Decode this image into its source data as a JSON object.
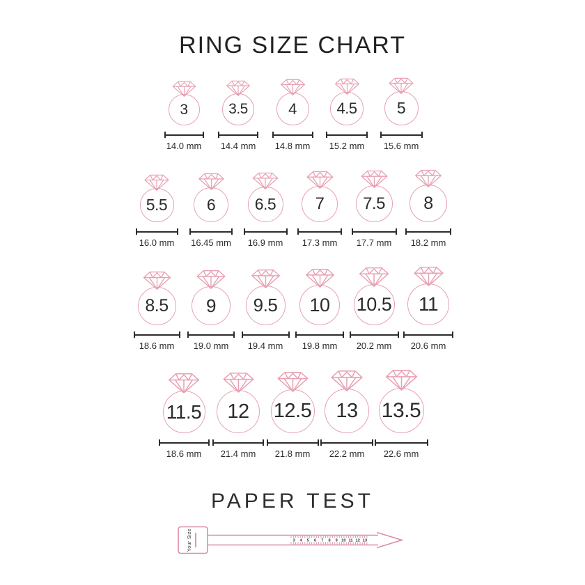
{
  "title": "RING SIZE CHART",
  "colors": {
    "pink": "#e8a1b3",
    "sizer_pink": "#de8ba3",
    "ink": "#2b2b2b"
  },
  "rows": [
    {
      "rings": [
        {
          "size": "3",
          "mm": "14.0 mm"
        },
        {
          "size": "3.5",
          "mm": "14.4 mm"
        },
        {
          "size": "4",
          "mm": "14.8 mm"
        },
        {
          "size": "4.5",
          "mm": "15.2 mm"
        },
        {
          "size": "5",
          "mm": "15.6 mm"
        }
      ]
    },
    {
      "rings": [
        {
          "size": "5.5",
          "mm": "16.0 mm"
        },
        {
          "size": "6",
          "mm": "16.45 mm"
        },
        {
          "size": "6.5",
          "mm": "16.9 mm"
        },
        {
          "size": "7",
          "mm": "17.3 mm"
        },
        {
          "size": "7.5",
          "mm": "17.7 mm"
        },
        {
          "size": "8",
          "mm": "18.2 mm"
        }
      ]
    },
    {
      "rings": [
        {
          "size": "8.5",
          "mm": "18.6 mm"
        },
        {
          "size": "9",
          "mm": "19.0 mm"
        },
        {
          "size": "9.5",
          "mm": "19.4 mm"
        },
        {
          "size": "10",
          "mm": "19.8 mm"
        },
        {
          "size": "10.5",
          "mm": "20.2 mm"
        },
        {
          "size": "11",
          "mm": "20.6 mm"
        }
      ]
    },
    {
      "rings": [
        {
          "size": "11.5",
          "mm": "18.6 mm"
        },
        {
          "size": "12",
          "mm": "21.4 mm"
        },
        {
          "size": "12.5",
          "mm": "21.8 mm"
        },
        {
          "size": "13",
          "mm": "22.2 mm"
        },
        {
          "size": "13.5",
          "mm": "22.6 mm"
        }
      ]
    }
  ],
  "paper_test": {
    "title": "PAPER TEST",
    "tab_label": "Your Size",
    "ruler_numbers": [
      "3",
      "4",
      "5",
      "6",
      "7",
      "8",
      "9",
      "10",
      "11",
      "12",
      "13"
    ]
  }
}
